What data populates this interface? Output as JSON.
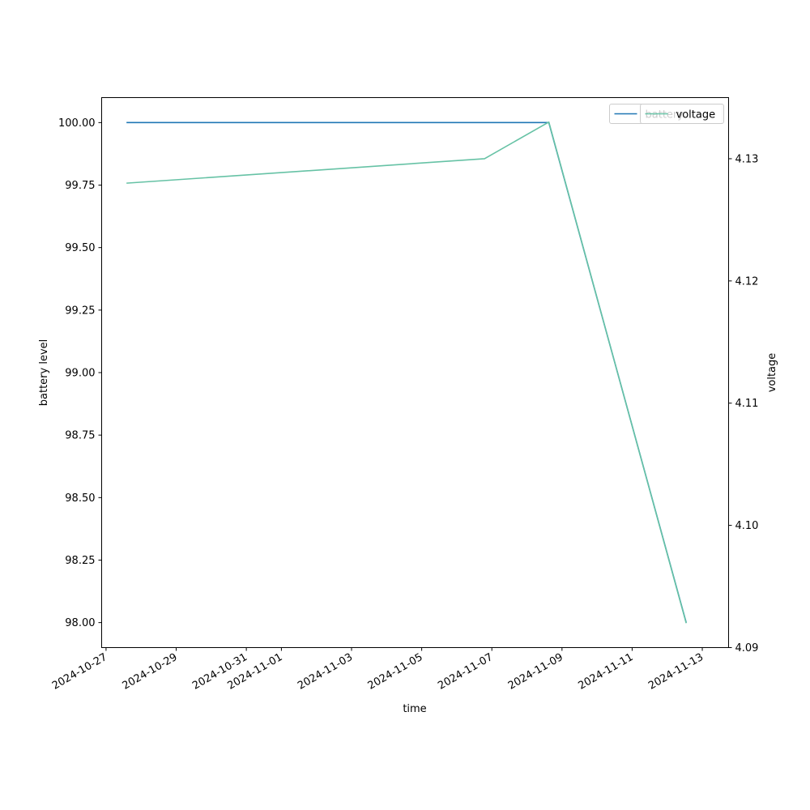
{
  "chart_data": {
    "type": "line",
    "title": "",
    "xlabel": "time",
    "ylabel_left": "battery level",
    "ylabel_right": "voltage",
    "x_ticks": [
      "2024-10-27",
      "2024-10-29",
      "2024-10-31",
      "2024-11-01",
      "2024-11-03",
      "2024-11-05",
      "2024-11-07",
      "2024-11-09",
      "2024-11-11",
      "2024-11-13"
    ],
    "x_range": [
      "2024-10-26T21:00",
      "2024-11-13T18:00"
    ],
    "y_left": {
      "range": [
        97.9,
        100.1
      ],
      "ticks": [
        "98.00",
        "98.25",
        "98.50",
        "98.75",
        "99.00",
        "99.25",
        "99.50",
        "99.75",
        "100.00"
      ]
    },
    "y_right": {
      "range": [
        4.09,
        4.135
      ],
      "ticks": [
        "4.09",
        "4.10",
        "4.11",
        "4.12",
        "4.13"
      ]
    },
    "series": [
      {
        "name": "battery",
        "axis": "left",
        "color": "#1f77b4",
        "x": [
          "2024-10-27T14:00",
          "2024-11-08T15:00",
          "2024-11-12T13:00"
        ],
        "values": [
          100.0,
          100.0,
          98.0
        ]
      },
      {
        "name": "voltage",
        "axis": "right",
        "color": "#66c2a5",
        "x": [
          "2024-10-27T14:00",
          "2024-11-06T19:00",
          "2024-11-08T15:00",
          "2024-11-12T13:00"
        ],
        "values": [
          4.128,
          4.13,
          4.133,
          4.092
        ]
      }
    ],
    "legends": [
      {
        "placement": "top-right",
        "entries": [
          "battery"
        ]
      },
      {
        "placement": "top-right",
        "entries": [
          "voltage"
        ]
      }
    ],
    "grid": false
  }
}
